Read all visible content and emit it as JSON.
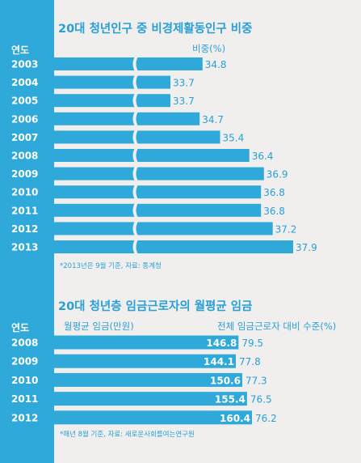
{
  "colors": {
    "sidebar": "#2fa9d9",
    "bar": "#2fa9d9",
    "text_accent": "#2a9fd6",
    "background": "#f0efed",
    "tick": "#ffffff"
  },
  "chart_data": [
    {
      "type": "bar",
      "title": "20대 청년인구 중 비경제활동인구 비중",
      "category_header": "연도",
      "value_header": "비중(%)",
      "categories": [
        "2003",
        "2004",
        "2005",
        "2006",
        "2007",
        "2008",
        "2009",
        "2010",
        "2011",
        "2012",
        "2013"
      ],
      "values": [
        34.8,
        33.7,
        33.7,
        34.7,
        35.4,
        36.4,
        36.9,
        36.8,
        36.8,
        37.2,
        37.9
      ],
      "value_labels": [
        "34.8",
        "33.7",
        "33.7",
        "34.7",
        "35.4",
        "36.4",
        "36.9",
        "36.8",
        "36.8",
        "37.2",
        "37.9"
      ],
      "axis_break": true,
      "note": "*2013년은 9월 기준, 자료: 통계청"
    },
    {
      "type": "bar",
      "title": "20대 청년층 임금근로자의 월평균 임금",
      "category_header": "연도",
      "value_header": "월평균 임금(만원)",
      "ratio_header": "전체 임금근로자 대비 수준(%)",
      "categories": [
        "2008",
        "2009",
        "2010",
        "2011",
        "2012"
      ],
      "values": [
        146.8,
        144.1,
        150.6,
        155.4,
        160.4
      ],
      "value_labels": [
        "146.8",
        "144.1",
        "150.6",
        "155.4",
        "160.4"
      ],
      "ratios": [
        79.5,
        77.8,
        77.3,
        76.5,
        76.2
      ],
      "ratio_labels": [
        "79.5",
        "77.8",
        "77.3",
        "76.5",
        "76.2"
      ],
      "note": "*매년 8월 기준, 자료: 새로운사회를여는연구원"
    }
  ]
}
